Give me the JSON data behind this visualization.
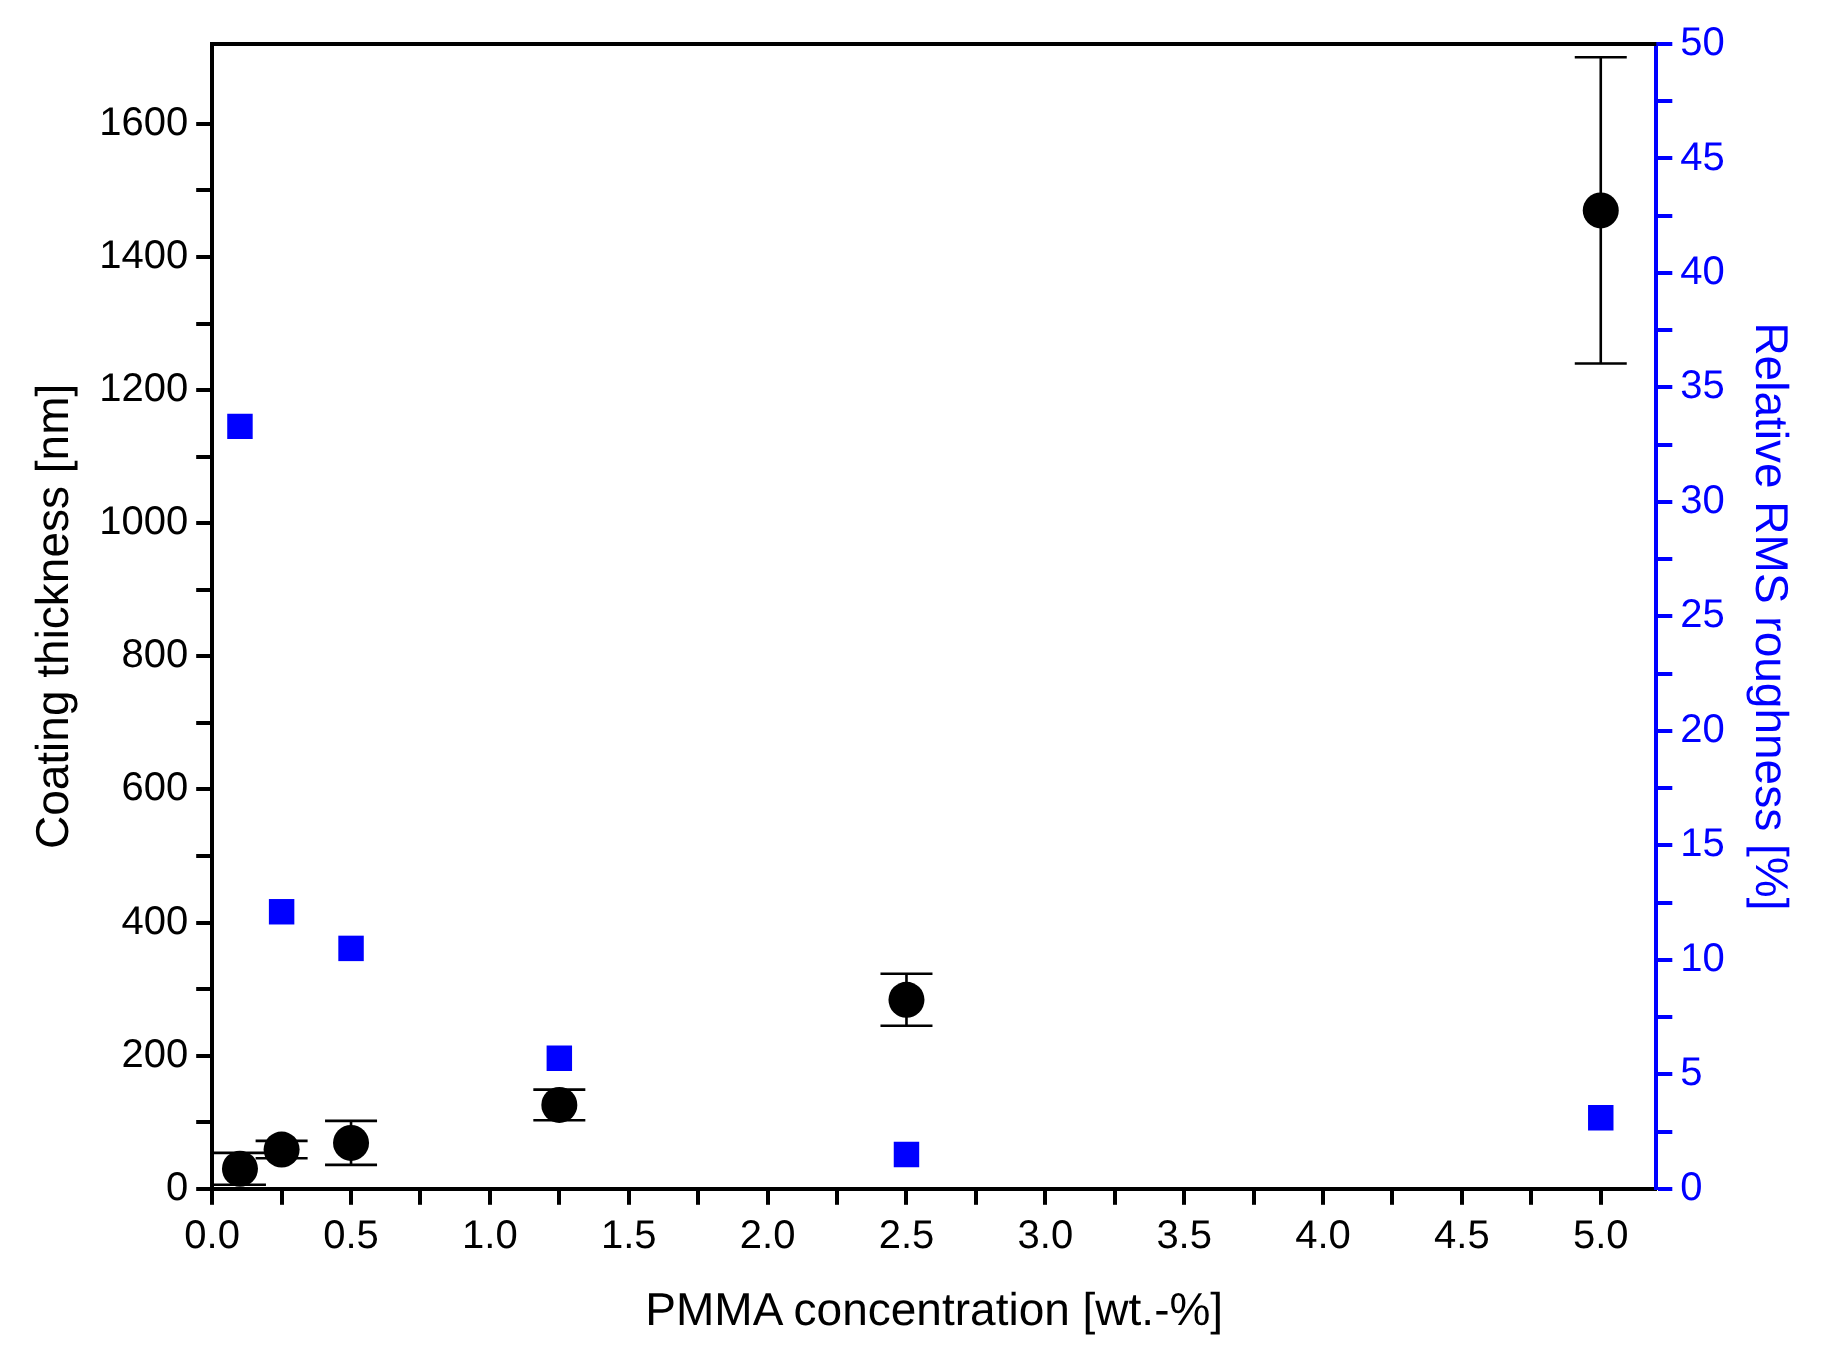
{
  "chart_data": {
    "type": "scatter",
    "xlabel": "PMMA concentration [wt.-%]",
    "ylabel": "Coating thickness [nm]",
    "y2label": "Relative RMS roughness [%]",
    "xlim": [
      0,
      5.2
    ],
    "ylim": [
      0,
      1720
    ],
    "y2lim": [
      0,
      50
    ],
    "xticks": [
      {
        "value": 0,
        "label": "0.0"
      },
      {
        "value": 0.25,
        "label": null
      },
      {
        "value": 0.5,
        "label": "0.5"
      },
      {
        "value": 0.75,
        "label": null
      },
      {
        "value": 1,
        "label": "1.0"
      },
      {
        "value": 1.25,
        "label": null
      },
      {
        "value": 1.5,
        "label": "1.5"
      },
      {
        "value": 1.75,
        "label": null
      },
      {
        "value": 2,
        "label": "2.0"
      },
      {
        "value": 2.25,
        "label": null
      },
      {
        "value": 2.5,
        "label": "2.5"
      },
      {
        "value": 2.75,
        "label": null
      },
      {
        "value": 3,
        "label": "3.0"
      },
      {
        "value": 3.25,
        "label": null
      },
      {
        "value": 3.5,
        "label": "3.5"
      },
      {
        "value": 3.75,
        "label": null
      },
      {
        "value": 4,
        "label": "4.0"
      },
      {
        "value": 4.25,
        "label": null
      },
      {
        "value": 4.5,
        "label": "4.5"
      },
      {
        "value": 4.75,
        "label": null
      },
      {
        "value": 5,
        "label": "5.0"
      }
    ],
    "yticks": [
      0,
      {
        "value": 100,
        "label": null
      },
      200,
      {
        "value": 300,
        "label": null
      },
      400,
      {
        "value": 500,
        "label": null
      },
      600,
      {
        "value": 700,
        "label": null
      },
      800,
      {
        "value": 900,
        "label": null
      },
      1000,
      {
        "value": 1100,
        "label": null
      },
      1200,
      {
        "value": 1300,
        "label": null
      },
      1400,
      {
        "value": 1500,
        "label": null
      },
      1600
    ],
    "y2ticks": [
      0,
      {
        "value": 2.5,
        "label": null
      },
      5,
      {
        "value": 7.5,
        "label": null
      },
      10,
      {
        "value": 12.5,
        "label": null
      },
      15,
      {
        "value": 17.5,
        "label": null
      },
      20,
      {
        "value": 22.5,
        "label": null
      },
      25,
      {
        "value": 27.5,
        "label": null
      },
      30,
      {
        "value": 32.5,
        "label": null
      },
      35,
      {
        "value": 37.5,
        "label": null
      },
      40,
      {
        "value": 42.5,
        "label": null
      },
      45,
      {
        "value": 47.5,
        "label": null
      },
      50
    ],
    "grid": false,
    "legend": false,
    "series": [
      {
        "color": "#000000",
        "marker": "circle",
        "x": [
          0.1,
          0.25,
          0.5,
          1.25,
          2.5,
          5.0
        ],
        "values": [
          30,
          59,
          69,
          126,
          284,
          1470
        ],
        "errors": [
          24,
          13,
          33,
          23,
          39,
          230
        ]
      },
      {
        "color": "#0000ff",
        "marker": "square",
        "axis": "y2",
        "x": [
          0.1,
          0.25,
          0.5,
          1.25,
          2.5,
          5.0
        ],
        "values": [
          33.3,
          12.1,
          10.5,
          5.7,
          1.5,
          3.1
        ]
      }
    ]
  }
}
